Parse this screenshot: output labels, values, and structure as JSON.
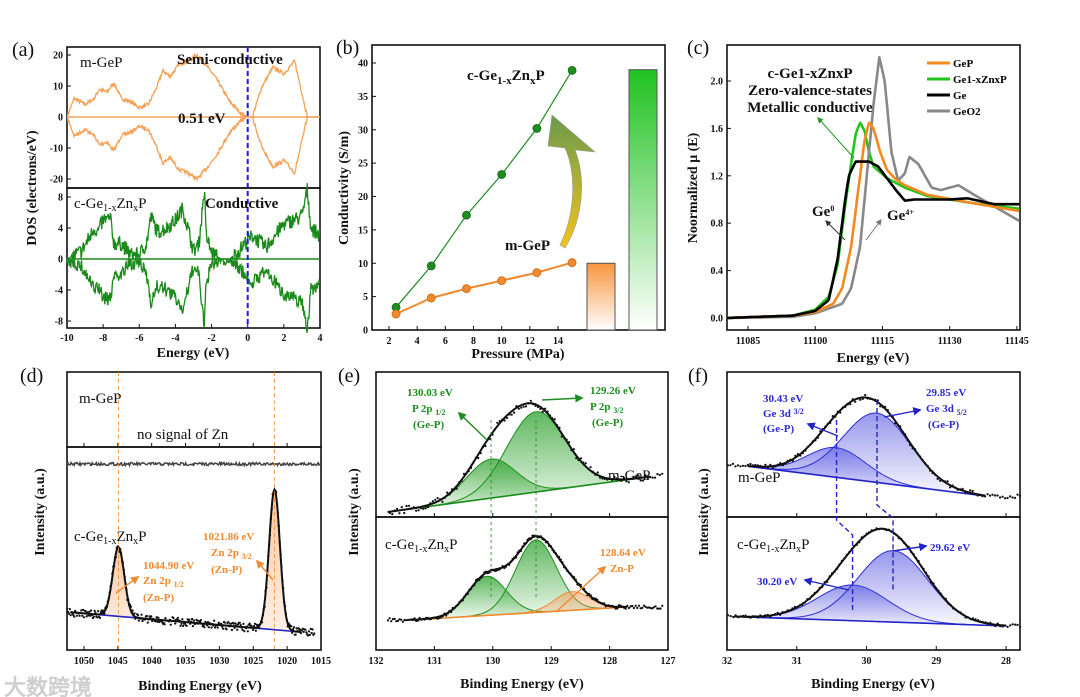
{
  "panel_letters": [
    "(a)",
    "(b)",
    "(c)",
    "(d)",
    "(e)",
    "(f)"
  ],
  "watermark": "大数跨境",
  "chart_data": [
    {
      "panel": "(a)",
      "type": "line",
      "xlabel": "Energy (eV)",
      "ylabel": "DOS (electrons/eV)",
      "xlim": [
        -10,
        4
      ],
      "xticks": [
        -10,
        -8,
        -6,
        -4,
        -2,
        0,
        2,
        4
      ],
      "fermi_level": 0,
      "top": {
        "label": "m-GeP",
        "annotation": "Semi-conductive",
        "gap_label": "0.51 eV",
        "ylim": [
          -22,
          22
        ],
        "yticks": [
          20,
          10,
          0,
          -10,
          -20
        ],
        "color": "#f4a257",
        "envelope": [
          [
            -10,
            0
          ],
          [
            -9.6,
            6
          ],
          [
            -9,
            4
          ],
          [
            -8.5,
            6
          ],
          [
            -8.2,
            9
          ],
          [
            -7.8,
            8
          ],
          [
            -7.4,
            11
          ],
          [
            -7,
            6
          ],
          [
            -6.5,
            5
          ],
          [
            -6,
            3
          ],
          [
            -5.5,
            4
          ],
          [
            -5,
            10
          ],
          [
            -4.7,
            15
          ],
          [
            -4.3,
            13
          ],
          [
            -3.8,
            17
          ],
          [
            -3.3,
            18
          ],
          [
            -2.8,
            20
          ],
          [
            -2.2,
            16
          ],
          [
            -1.7,
            12
          ],
          [
            -1,
            5
          ],
          [
            -0.3,
            0.8
          ],
          [
            0,
            0
          ],
          [
            0.25,
            0
          ],
          [
            0.8,
            10
          ],
          [
            1.4,
            16
          ],
          [
            2,
            14
          ],
          [
            2.6,
            18
          ],
          [
            3.3,
            0
          ],
          [
            4,
            0
          ]
        ]
      },
      "bottom": {
        "label_parts": [
          "c-Ge",
          "1-x",
          "Zn",
          "x",
          "P"
        ],
        "annotation": "Conductive",
        "ylim": [
          -9,
          9
        ],
        "yticks": [
          8,
          4,
          0,
          -4,
          -8
        ],
        "color": "#1a8a1a",
        "envelope": [
          [
            -10,
            0
          ],
          [
            -9.2,
            1
          ],
          [
            -8.7,
            3
          ],
          [
            -8.5,
            4
          ],
          [
            -8.3,
            3.5
          ],
          [
            -8,
            5
          ],
          [
            -7.6,
            5.2
          ],
          [
            -7.4,
            2
          ],
          [
            -7,
            2
          ],
          [
            -6.5,
            0.6
          ],
          [
            -6,
            0.5
          ],
          [
            -5.6,
            2
          ],
          [
            -5.35,
            5.5
          ],
          [
            -5,
            3.5
          ],
          [
            -4.5,
            4
          ],
          [
            -4,
            5
          ],
          [
            -3.6,
            6.5
          ],
          [
            -3.2,
            3
          ],
          [
            -3,
            1
          ],
          [
            -2.7,
            2
          ],
          [
            -2.4,
            9
          ],
          [
            -2.3,
            3
          ],
          [
            -2,
            0.8
          ],
          [
            -1.5,
            0
          ],
          [
            -1,
            0
          ],
          [
            -0.5,
            1
          ],
          [
            0,
            2.5
          ],
          [
            0.3,
            3
          ],
          [
            1,
            1.5
          ],
          [
            1.5,
            3
          ],
          [
            2,
            4.5
          ],
          [
            2.5,
            5
          ],
          [
            3,
            5.5
          ],
          [
            3.3,
            9
          ],
          [
            3.5,
            4
          ],
          [
            4,
            3
          ]
        ]
      }
    },
    {
      "panel": "(b)",
      "type": "line+bar",
      "xlabel": "Pressure (MPa)",
      "ylabel": "Conductivity (S/m)",
      "xlim": [
        1.5,
        15.9
      ],
      "ylim": [
        0,
        42
      ],
      "xticks": [
        2,
        4,
        6,
        8,
        10,
        12,
        14
      ],
      "yticks": [
        0,
        5,
        10,
        15,
        20,
        25,
        30,
        35,
        40
      ],
      "x": [
        2.5,
        5,
        7.5,
        10,
        12.5,
        15
      ],
      "series": [
        {
          "name": "c-Ge1-xZnxP",
          "label_parts": [
            "c-Ge",
            "1-x",
            "Zn",
            "x",
            "P"
          ],
          "color": "#1f8c1f",
          "values": [
            3.4,
            9.6,
            17.2,
            23.3,
            30.2,
            38.9
          ]
        },
        {
          "name": "m-GeP",
          "label": "m-GeP",
          "color": "#f08a30",
          "values": [
            2.4,
            4.8,
            6.2,
            7.4,
            8.6,
            10.1
          ]
        }
      ],
      "bars": [
        {
          "name": "m-GeP",
          "value": 10,
          "color": "#f7a050"
        },
        {
          "name": "c-Ge1-xZnxP",
          "value": 39,
          "color": "#22c322"
        }
      ]
    },
    {
      "panel": "(c)",
      "type": "line",
      "xlabel": "Energy (eV)",
      "ylabel": "Noormalized μ (E)",
      "xlim": [
        11080.3,
        11145.7
      ],
      "ylim": [
        -0.1,
        2.25
      ],
      "xticks": [
        11085,
        11100,
        11115,
        11130,
        11145
      ],
      "yticks": [
        0.0,
        0.4,
        0.8,
        1.2,
        1.6,
        2.0
      ],
      "ytick_labels": [
        "0.0",
        "0.4",
        "0.8",
        "1.2",
        "1.6",
        "2.0"
      ],
      "legend": "top-right",
      "annotation_lines": [
        "c-Ge1-xZnxP",
        "Zero-valence-states",
        "Metallic conductive"
      ],
      "ge0_label": [
        "Ge",
        "0"
      ],
      "ge4_label": [
        "Ge",
        "4+"
      ],
      "series": [
        {
          "name": "GeP",
          "color": "#f28a1e",
          "points": [
            [
              11080,
              0
            ],
            [
              11095,
              0.02
            ],
            [
              11100,
              0.05
            ],
            [
              11104,
              0.12
            ],
            [
              11106,
              0.25
            ],
            [
              11108,
              0.6
            ],
            [
              11110,
              1.2
            ],
            [
              11111,
              1.5
            ],
            [
              11112,
              1.65
            ],
            [
              11113,
              1.6
            ],
            [
              11114.5,
              1.4
            ],
            [
              11116,
              1.25
            ],
            [
              11118,
              1.17
            ],
            [
              11120,
              1.12
            ],
            [
              11125,
              1.04
            ],
            [
              11135,
              0.97
            ],
            [
              11146,
              0.9
            ]
          ]
        },
        {
          "name": "Ge1-xZnxP",
          "color": "#22c41e",
          "points": [
            [
              11080,
              0
            ],
            [
              11095,
              0.02
            ],
            [
              11100,
              0.07
            ],
            [
              11103,
              0.18
            ],
            [
              11105,
              0.45
            ],
            [
              11106.5,
              0.9
            ],
            [
              11108,
              1.3
            ],
            [
              11109,
              1.55
            ],
            [
              11110,
              1.65
            ],
            [
              11111,
              1.58
            ],
            [
              11112,
              1.4
            ],
            [
              11113,
              1.28
            ],
            [
              11116,
              1.18
            ],
            [
              11120,
              1.1
            ],
            [
              11125,
              1.03
            ],
            [
              11135,
              0.97
            ],
            [
              11146,
              0.92
            ]
          ]
        },
        {
          "name": "Ge",
          "color": "#000000",
          "points": [
            [
              11080,
              0
            ],
            [
              11095,
              0.02
            ],
            [
              11100,
              0.06
            ],
            [
              11103,
              0.15
            ],
            [
              11105,
              0.5
            ],
            [
              11106.5,
              0.95
            ],
            [
              11107.5,
              1.2
            ],
            [
              11109,
              1.32
            ],
            [
              11112,
              1.32
            ],
            [
              11114,
              1.28
            ],
            [
              11116,
              1.18
            ],
            [
              11118,
              1.08
            ],
            [
              11120,
              0.99
            ],
            [
              11122,
              1.0
            ],
            [
              11126,
              1.0
            ],
            [
              11130,
              1.0
            ],
            [
              11134,
              1.01
            ],
            [
              11140,
              0.96
            ],
            [
              11146,
              0.96
            ]
          ]
        },
        {
          "name": "GeO2",
          "color": "#888888",
          "points": [
            [
              11080,
              0
            ],
            [
              11095,
              0.01
            ],
            [
              11100,
              0.04
            ],
            [
              11106,
              0.12
            ],
            [
              11108,
              0.25
            ],
            [
              11110,
              0.6
            ],
            [
              11111.5,
              1.2
            ],
            [
              11113,
              1.8
            ],
            [
              11114.3,
              2.2
            ],
            [
              11115.5,
              2.0
            ],
            [
              11117,
              1.4
            ],
            [
              11118.5,
              1.16
            ],
            [
              11120,
              1.22
            ],
            [
              11121,
              1.36
            ],
            [
              11123,
              1.3
            ],
            [
              11126,
              1.1
            ],
            [
              11128,
              1.08
            ],
            [
              11132,
              1.12
            ],
            [
              11135,
              1.05
            ],
            [
              11140,
              0.94
            ],
            [
              11146,
              0.81
            ]
          ]
        }
      ]
    },
    {
      "panel": "(d)",
      "type": "line",
      "xlabel": "Binding Energy (eV)",
      "ylabel": "Intensity (a.u.)",
      "xlim": [
        1052.5,
        1015
      ],
      "xticks": [
        1050,
        1045,
        1040,
        1035,
        1030,
        1025,
        1020,
        1015
      ],
      "top": {
        "label": "m-GeP",
        "annotation": "no signal of Zn"
      },
      "bottom": {
        "label_parts": [
          "c-Ge",
          "1-x",
          "Zn",
          "x",
          "P"
        ],
        "baseline": [
          [
            1052,
            0.12
          ],
          [
            1018,
            0.0
          ]
        ],
        "peaks": [
          {
            "center": 1044.9,
            "amp": 0.42,
            "sigma": 0.85,
            "label": [
              "1044.90 eV",
              "Zn 2p ",
              "1/2",
              "(Zn-P)"
            ],
            "color": "#f08a30"
          },
          {
            "center": 1021.86,
            "amp": 0.85,
            "sigma": 0.8,
            "label": [
              "1021.86 eV",
              "Zn 2p ",
              "3/2",
              "(Zn-P)"
            ],
            "color": "#f08a30"
          }
        ]
      }
    },
    {
      "panel": "(e)",
      "type": "line",
      "xlabel": "Binding Energy (eV)",
      "ylabel": "Intensity (a.u.)",
      "xlim": [
        132,
        127
      ],
      "xticks": [
        132,
        131,
        130,
        129,
        128,
        127
      ],
      "top": {
        "label": "m-GeP",
        "baseline": [
          [
            131.8,
            0
          ],
          [
            127.3,
            0.3
          ]
        ],
        "peaks": [
          {
            "center": 130.03,
            "amp": 0.33,
            "sigma": 0.42,
            "label": [
              "130.03 eV",
              "P 2p ",
              "1/2",
              "(Ge-P)"
            ],
            "color": "#1f8c1f"
          },
          {
            "center": 129.26,
            "amp": 0.68,
            "sigma": 0.5,
            "label": [
              "129.26 eV",
              "P 2p ",
              "3/2",
              "(Ge-P)"
            ],
            "color": "#1f8c1f"
          }
        ]
      },
      "bottom": {
        "label_parts": [
          "c-Ge",
          "1-x",
          "Zn",
          "x",
          "P"
        ],
        "baseline": [
          [
            131.4,
            0
          ],
          [
            127.7,
            0.14
          ]
        ],
        "peaks": [
          {
            "center": 130.1,
            "amp": 0.42,
            "sigma": 0.33,
            "color": "#1f8c1f"
          },
          {
            "center": 129.26,
            "amp": 0.78,
            "sigma": 0.35,
            "color": "#1f8c1f"
          },
          {
            "center": 128.64,
            "amp": 0.2,
            "sigma": 0.3,
            "label": [
              "128.64 eV",
              "Zn-P"
            ],
            "color": "#f08a30"
          }
        ]
      }
    },
    {
      "panel": "(f)",
      "type": "line",
      "xlabel": "Binding Energy (eV)",
      "ylabel": "Intensity (a.u.)",
      "xlim": [
        32,
        27.8
      ],
      "xticks": [
        32,
        31,
        30,
        29,
        28
      ],
      "top": {
        "label": "m-GeP",
        "baseline": [
          [
            31.7,
            0.3
          ],
          [
            28.3,
            0
          ]
        ],
        "peaks": [
          {
            "center": 30.43,
            "amp": 0.3,
            "sigma": 0.42,
            "label": [
              "30.43 eV",
              "Ge 3d ",
              "3/2",
              "(Ge-P)"
            ],
            "color": "#2b2bd6"
          },
          {
            "center": 29.85,
            "amp": 0.7,
            "sigma": 0.48,
            "label": [
              "29.85 eV",
              "Ge 3d ",
              "5/2",
              "(Ge-P)"
            ],
            "color": "#2b2bd6"
          }
        ]
      },
      "bottom": {
        "label_parts": [
          "c-Ge",
          "1-x",
          "Zn",
          "x",
          "P"
        ],
        "baseline": [
          [
            31.9,
            0.1
          ],
          [
            28,
            0
          ]
        ],
        "peaks": [
          {
            "center": 30.2,
            "amp": 0.38,
            "sigma": 0.5,
            "label": [
              "30.20 eV"
            ],
            "color": "#2b2bd6"
          },
          {
            "center": 29.62,
            "amp": 0.76,
            "sigma": 0.5,
            "label": [
              "29.62 eV"
            ],
            "color": "#2b2bd6"
          }
        ]
      }
    }
  ]
}
